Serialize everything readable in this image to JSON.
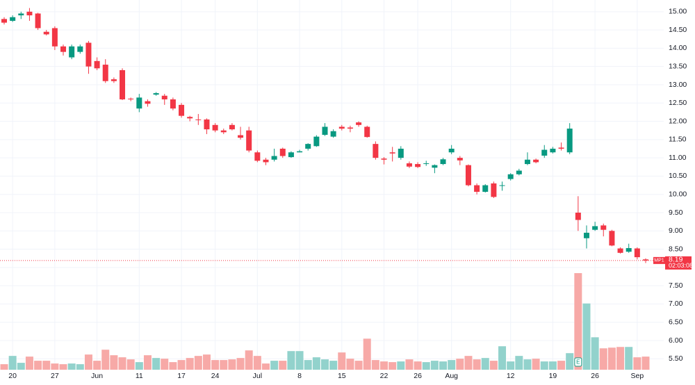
{
  "chart_data": {
    "type": "candlestick",
    "categories": [
      null,
      "20",
      null,
      null,
      null,
      null,
      "27",
      null,
      null,
      null,
      null,
      "Jun",
      null,
      null,
      null,
      null,
      "11",
      null,
      null,
      null,
      null,
      "17",
      null,
      null,
      null,
      "24",
      null,
      null,
      null,
      null,
      "Jul",
      null,
      null,
      null,
      null,
      "8",
      null,
      null,
      null,
      null,
      "15",
      null,
      null,
      null,
      null,
      "22",
      null,
      null,
      null,
      "26",
      null,
      null,
      null,
      "Aug",
      null,
      null,
      null,
      null,
      null,
      null,
      "12",
      null,
      null,
      null,
      null,
      "19",
      null,
      null,
      null,
      null,
      "26",
      null,
      null,
      null,
      null,
      "Sep",
      null
    ],
    "open": [
      14.8,
      14.75,
      14.9,
      15.0,
      14.95,
      14.45,
      14.55,
      14.05,
      13.75,
      13.9,
      14.15,
      13.65,
      13.55,
      13.15,
      13.4,
      12.62,
      12.35,
      12.55,
      12.73,
      12.7,
      12.6,
      12.45,
      12.12,
      12.05,
      12.05,
      11.9,
      11.75,
      11.9,
      11.62,
      11.75,
      11.15,
      10.95,
      10.95,
      11.25,
      11.02,
      11.15,
      11.25,
      11.32,
      11.63,
      11.58,
      11.85,
      11.83,
      11.97,
      11.85,
      11.38,
      10.98,
      11.15,
      11.0,
      10.85,
      10.83,
      10.85,
      10.73,
      10.83,
      11.15,
      11.0,
      10.8,
      10.25,
      10.07,
      10.3,
      10.25,
      10.42,
      10.55,
      10.83,
      10.95,
      11.06,
      11.15,
      11.28,
      11.15,
      9.5,
      8.8,
      9.03,
      9.15,
      9.0,
      8.52,
      8.43,
      8.52,
      8.22
    ],
    "high": [
      14.85,
      14.9,
      15.0,
      15.1,
      14.97,
      14.5,
      14.6,
      14.1,
      14.1,
      14.1,
      14.2,
      13.75,
      13.7,
      13.2,
      13.45,
      12.65,
      12.75,
      12.6,
      12.8,
      12.75,
      12.65,
      12.5,
      12.15,
      12.2,
      12.08,
      11.95,
      11.8,
      11.95,
      11.85,
      11.85,
      11.2,
      11.0,
      11.25,
      11.28,
      11.18,
      11.22,
      11.4,
      11.62,
      11.95,
      11.78,
      11.9,
      11.88,
      12.0,
      11.88,
      11.45,
      11.02,
      11.3,
      11.32,
      10.9,
      10.88,
      10.92,
      10.82,
      11.0,
      11.35,
      11.05,
      10.82,
      10.3,
      10.28,
      10.35,
      10.35,
      10.58,
      10.7,
      11.15,
      10.98,
      11.35,
      11.3,
      11.42,
      11.95,
      9.95,
      9.15,
      9.25,
      9.2,
      9.03,
      8.55,
      8.65,
      8.55,
      8.25
    ],
    "low": [
      14.65,
      14.72,
      14.8,
      14.75,
      14.5,
      14.35,
      13.95,
      13.8,
      13.7,
      13.85,
      13.3,
      13.4,
      13.05,
      13.05,
      12.58,
      12.55,
      12.25,
      12.4,
      12.7,
      12.45,
      12.3,
      12.1,
      12.0,
      11.9,
      11.65,
      11.7,
      11.65,
      11.75,
      11.5,
      11.15,
      10.88,
      10.8,
      10.9,
      11.0,
      11.0,
      11.15,
      11.2,
      11.3,
      11.6,
      11.55,
      11.75,
      11.7,
      11.85,
      11.55,
      10.95,
      10.82,
      10.9,
      10.95,
      10.72,
      10.72,
      10.78,
      10.58,
      10.8,
      11.1,
      10.8,
      10.22,
      10.0,
      10.05,
      9.9,
      10.1,
      10.38,
      10.52,
      10.8,
      10.85,
      11.0,
      11.12,
      11.2,
      11.1,
      9.0,
      8.52,
      9.0,
      8.85,
      8.58,
      8.38,
      8.4,
      8.22,
      8.12
    ],
    "close": [
      14.7,
      14.85,
      14.95,
      14.9,
      14.55,
      14.38,
      14.05,
      13.9,
      14.05,
      14.05,
      13.5,
      13.45,
      13.1,
      13.1,
      12.6,
      12.6,
      12.65,
      12.48,
      12.77,
      12.6,
      12.35,
      12.15,
      12.08,
      12.04,
      11.78,
      11.75,
      11.7,
      11.78,
      11.55,
      11.2,
      10.92,
      10.88,
      11.05,
      11.05,
      11.15,
      11.18,
      11.38,
      11.58,
      11.85,
      11.73,
      11.8,
      11.8,
      11.9,
      11.57,
      11.0,
      10.95,
      11.12,
      11.25,
      10.76,
      10.75,
      10.85,
      10.8,
      10.96,
      11.25,
      10.93,
      10.25,
      10.07,
      10.25,
      9.93,
      10.25,
      10.55,
      10.65,
      10.95,
      10.88,
      11.22,
      11.25,
      11.25,
      11.8,
      9.3,
      8.95,
      9.13,
      9.03,
      8.6,
      8.4,
      8.53,
      8.28,
      8.19
    ],
    "volume": [
      8,
      20,
      10,
      19,
      13,
      13,
      9,
      8,
      9,
      8,
      22,
      13,
      29,
      21,
      18,
      15,
      11,
      21,
      17,
      16,
      11,
      14,
      17,
      20,
      22,
      14,
      14,
      15,
      17,
      28,
      20,
      9,
      13,
      13,
      27,
      27,
      14,
      18,
      15,
      13,
      25,
      16,
      13,
      45,
      14,
      12,
      11,
      12,
      15,
      12,
      11,
      13,
      12,
      14,
      16,
      20,
      15,
      17,
      13,
      34,
      12,
      20,
      15,
      16,
      12,
      12,
      13,
      24,
      140,
      96,
      47,
      31,
      32,
      33,
      33,
      18,
      19
    ],
    "up_color": "#089981",
    "down_color": "#f23645",
    "volume_up_color": "#92d2cc",
    "volume_down_color": "#f7a9a7",
    "ylim": [
      5.22,
      15.32
    ],
    "yticks": [
      {
        "value": 5.5,
        "label": "5.50"
      },
      {
        "value": 6,
        "label": "6.00"
      },
      {
        "value": 6.5,
        "label": "6.50"
      },
      {
        "value": 7,
        "label": "7.00"
      },
      {
        "value": 7.5,
        "label": "7.50"
      },
      {
        "value": 8,
        "label": "8.00"
      },
      {
        "value": 8.5,
        "label": "8.50"
      },
      {
        "value": 9,
        "label": "9.00"
      },
      {
        "value": 9.5,
        "label": "9.50"
      },
      {
        "value": 10,
        "label": "10.00"
      },
      {
        "value": 10.5,
        "label": "10.50"
      },
      {
        "value": 11,
        "label": "11.00"
      },
      {
        "value": 11.5,
        "label": "11.50"
      },
      {
        "value": 12,
        "label": "12.00"
      },
      {
        "value": 12.5,
        "label": "12.50"
      },
      {
        "value": 13,
        "label": "13.00"
      },
      {
        "value": 13.5,
        "label": "13.50"
      },
      {
        "value": 14,
        "label": "14.00"
      },
      {
        "value": 14.5,
        "label": "14.50"
      },
      {
        "value": 15,
        "label": "15.00"
      }
    ],
    "grid": true,
    "last_price": 8.19,
    "symbol": "MP1",
    "countdown": "02:03:08",
    "earnings_marker": "E"
  }
}
